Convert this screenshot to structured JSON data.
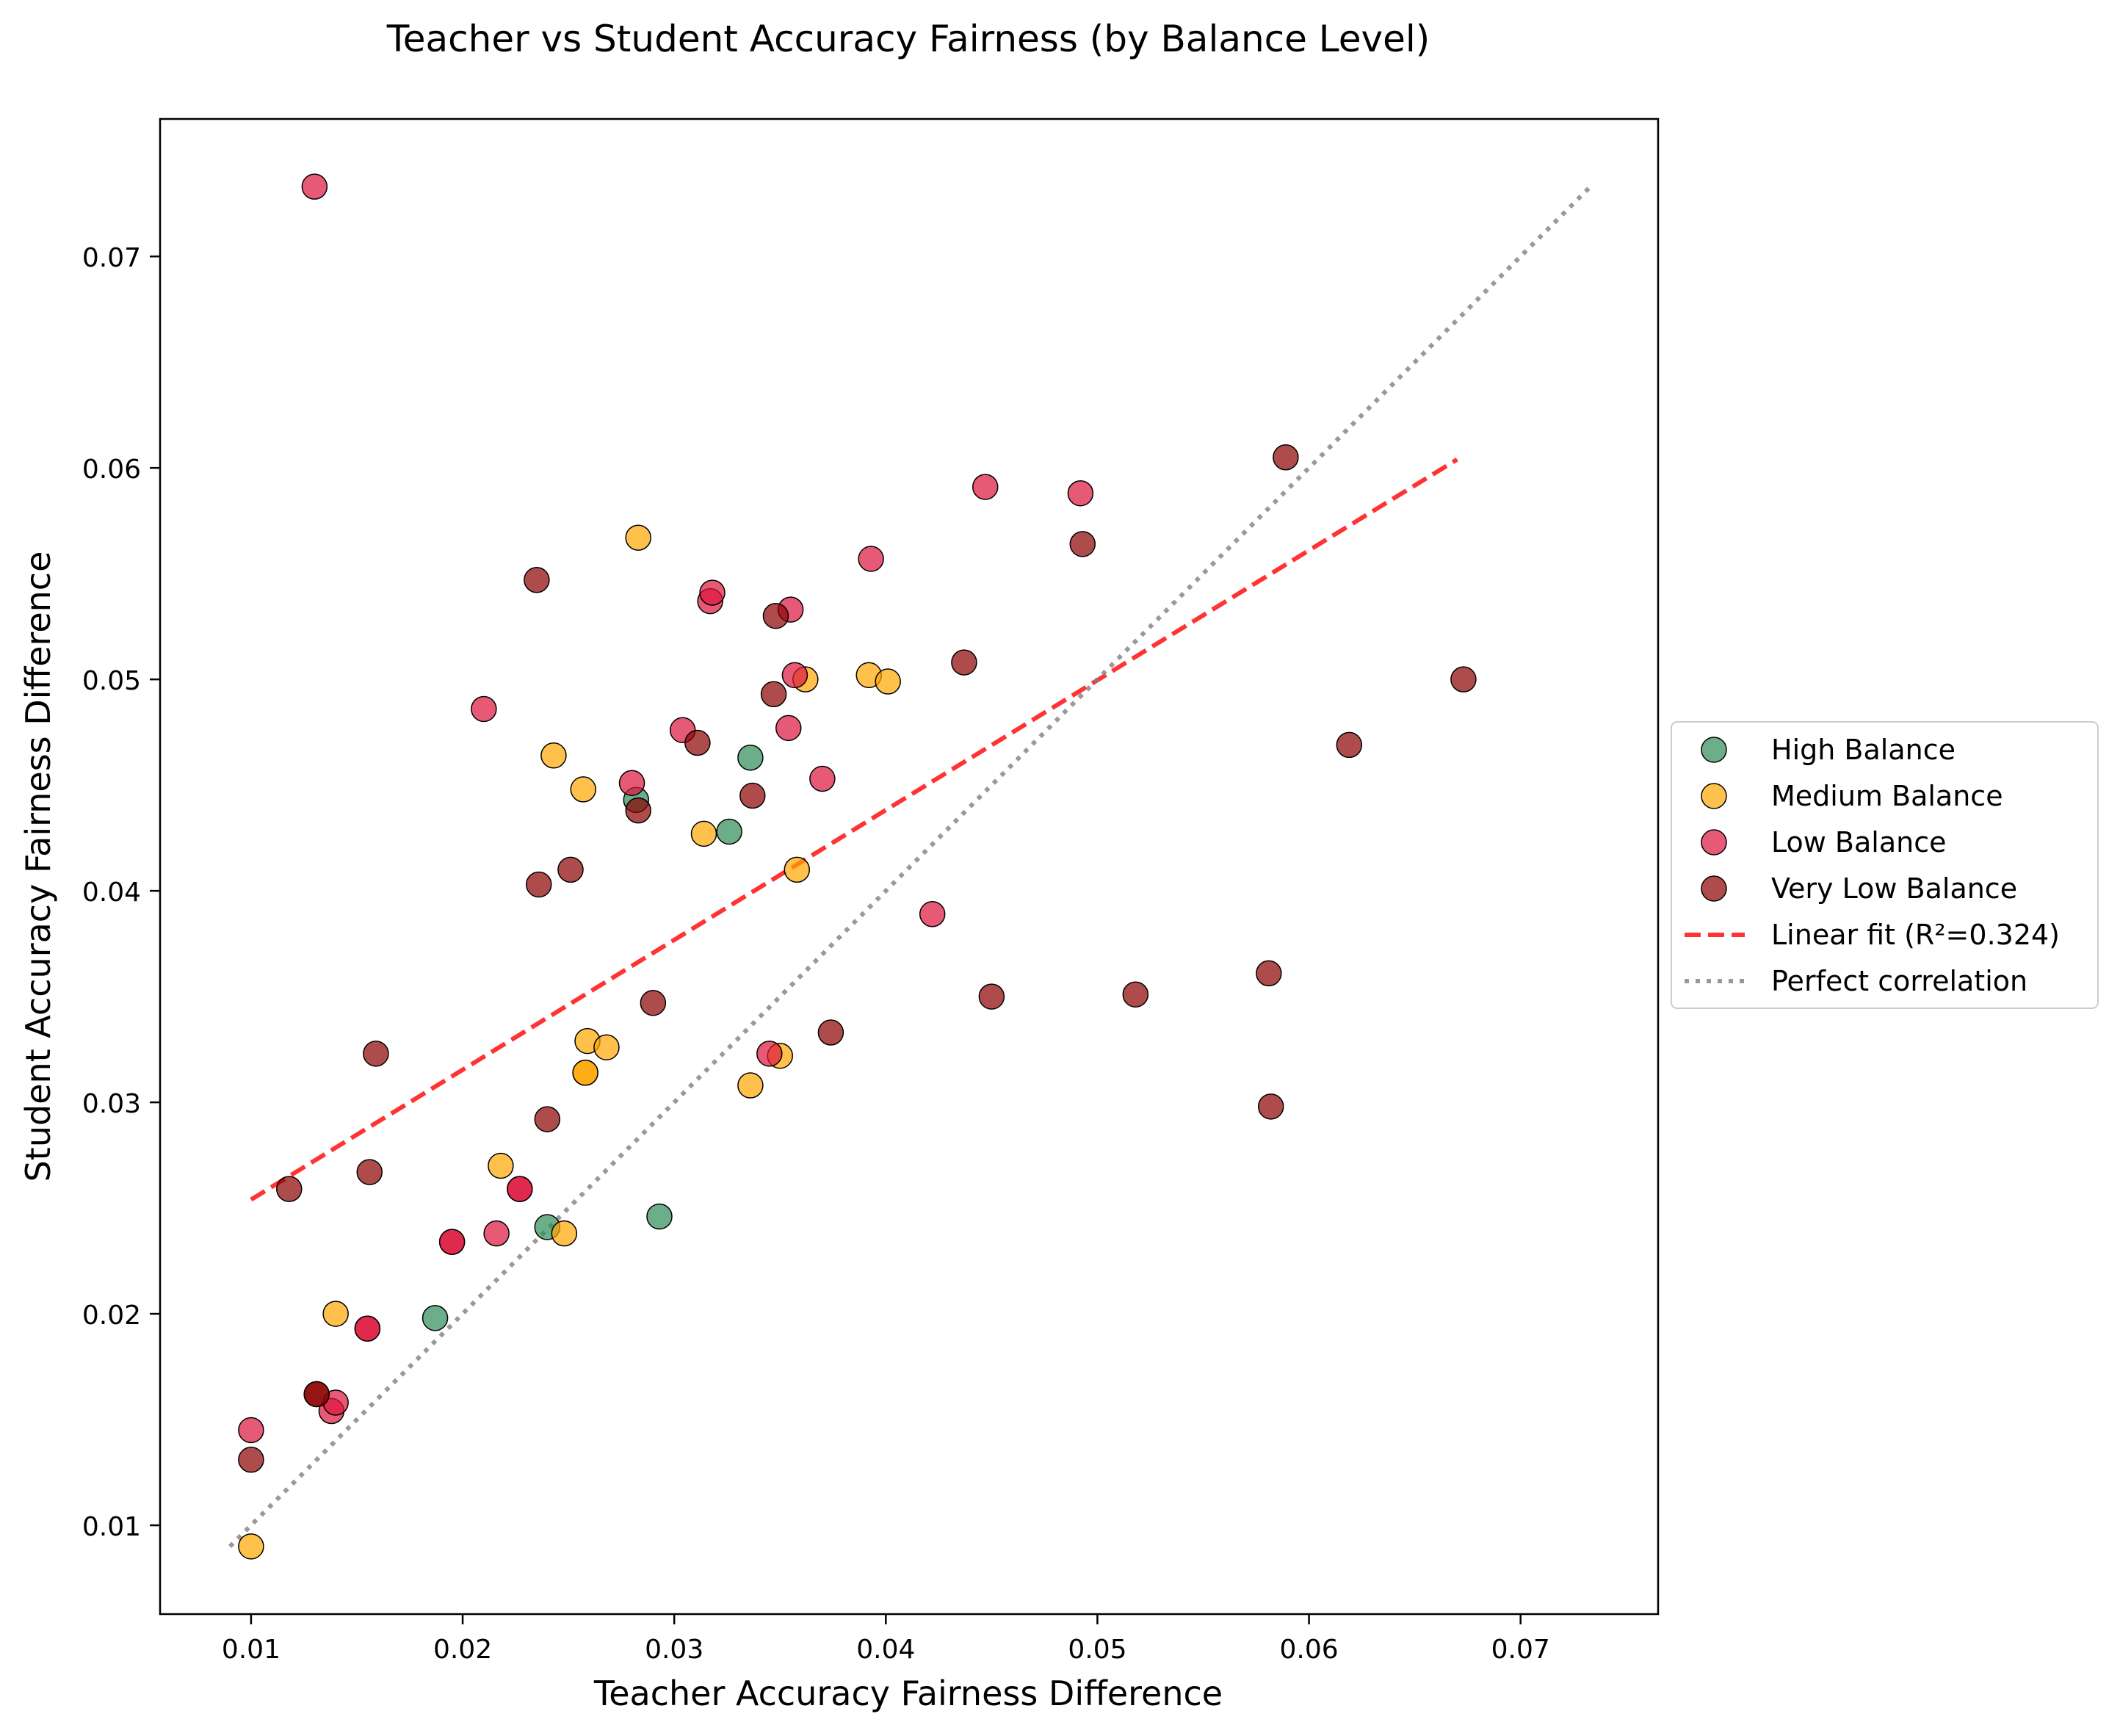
{
  "chart_data": {
    "type": "scatter",
    "title": "Teacher vs Student Accuracy Fairness (by Balance Level)",
    "xlabel": "Teacher Accuracy Fairness Difference",
    "ylabel": "Student Accuracy Fairness Difference",
    "xlim": [
      0.0057,
      0.0765
    ],
    "ylim": [
      0.0058,
      0.0765
    ],
    "xticks": [
      0.01,
      0.02,
      0.03,
      0.04,
      0.05,
      0.06,
      0.07
    ],
    "xtick_labels": [
      "0.01",
      "0.02",
      "0.03",
      "0.04",
      "0.05",
      "0.06",
      "0.07"
    ],
    "yticks": [
      0.01,
      0.02,
      0.03,
      0.04,
      0.05,
      0.06,
      0.07
    ],
    "ytick_labels": [
      "0.01",
      "0.02",
      "0.03",
      "0.04",
      "0.05",
      "0.06",
      "0.07"
    ],
    "grid": false,
    "legend_position": "center-right, outside plot",
    "series": [
      {
        "name": "High Balance",
        "color": "#2e8b57",
        "points": [
          {
            "x": 0.0187,
            "y": 0.0198
          },
          {
            "x": 0.024,
            "y": 0.0241
          },
          {
            "x": 0.0282,
            "y": 0.0443
          },
          {
            "x": 0.0293,
            "y": 0.0246
          },
          {
            "x": 0.0326,
            "y": 0.0428
          },
          {
            "x": 0.0336,
            "y": 0.0463
          }
        ]
      },
      {
        "name": "Medium Balance",
        "color": "#ffa500",
        "points": [
          {
            "x": 0.01,
            "y": 0.009
          },
          {
            "x": 0.014,
            "y": 0.02
          },
          {
            "x": 0.0218,
            "y": 0.027
          },
          {
            "x": 0.0243,
            "y": 0.0464
          },
          {
            "x": 0.0248,
            "y": 0.0238
          },
          {
            "x": 0.0257,
            "y": 0.0448
          },
          {
            "x": 0.0258,
            "y": 0.0314
          },
          {
            "x": 0.0258,
            "y": 0.0314
          },
          {
            "x": 0.0259,
            "y": 0.0329
          },
          {
            "x": 0.0268,
            "y": 0.0326
          },
          {
            "x": 0.0283,
            "y": 0.0567
          },
          {
            "x": 0.0314,
            "y": 0.0427
          },
          {
            "x": 0.0336,
            "y": 0.0308
          },
          {
            "x": 0.035,
            "y": 0.0322
          },
          {
            "x": 0.0358,
            "y": 0.041
          },
          {
            "x": 0.0362,
            "y": 0.05
          },
          {
            "x": 0.0392,
            "y": 0.0502
          },
          {
            "x": 0.0401,
            "y": 0.0499
          }
        ]
      },
      {
        "name": "Low Balance",
        "color": "#dc143c",
        "points": [
          {
            "x": 0.013,
            "y": 0.0733
          },
          {
            "x": 0.01,
            "y": 0.0145
          },
          {
            "x": 0.0138,
            "y": 0.0154
          },
          {
            "x": 0.014,
            "y": 0.0158
          },
          {
            "x": 0.0155,
            "y": 0.0193
          },
          {
            "x": 0.0155,
            "y": 0.0193
          },
          {
            "x": 0.0195,
            "y": 0.0234
          },
          {
            "x": 0.0195,
            "y": 0.0234
          },
          {
            "x": 0.021,
            "y": 0.0486
          },
          {
            "x": 0.0216,
            "y": 0.0238
          },
          {
            "x": 0.0227,
            "y": 0.0259
          },
          {
            "x": 0.0227,
            "y": 0.0259
          },
          {
            "x": 0.028,
            "y": 0.0451
          },
          {
            "x": 0.0304,
            "y": 0.0476
          },
          {
            "x": 0.0317,
            "y": 0.0537
          },
          {
            "x": 0.0318,
            "y": 0.0541
          },
          {
            "x": 0.0345,
            "y": 0.0323
          },
          {
            "x": 0.0354,
            "y": 0.0477
          },
          {
            "x": 0.0355,
            "y": 0.0533
          },
          {
            "x": 0.0357,
            "y": 0.0502
          },
          {
            "x": 0.037,
            "y": 0.0453
          },
          {
            "x": 0.0393,
            "y": 0.0557
          },
          {
            "x": 0.0422,
            "y": 0.0389
          },
          {
            "x": 0.0447,
            "y": 0.0591
          },
          {
            "x": 0.0492,
            "y": 0.0588
          }
        ]
      },
      {
        "name": "Very Low Balance",
        "color": "#8b0000",
        "points": [
          {
            "x": 0.01,
            "y": 0.0131
          },
          {
            "x": 0.0118,
            "y": 0.0259
          },
          {
            "x": 0.0131,
            "y": 0.0162
          },
          {
            "x": 0.0131,
            "y": 0.0162
          },
          {
            "x": 0.0156,
            "y": 0.0267
          },
          {
            "x": 0.0159,
            "y": 0.0323
          },
          {
            "x": 0.0235,
            "y": 0.0547
          },
          {
            "x": 0.0236,
            "y": 0.0403
          },
          {
            "x": 0.024,
            "y": 0.0292
          },
          {
            "x": 0.0251,
            "y": 0.041
          },
          {
            "x": 0.0283,
            "y": 0.0438
          },
          {
            "x": 0.029,
            "y": 0.0347
          },
          {
            "x": 0.0311,
            "y": 0.047
          },
          {
            "x": 0.0337,
            "y": 0.0445
          },
          {
            "x": 0.0347,
            "y": 0.0493
          },
          {
            "x": 0.0348,
            "y": 0.053
          },
          {
            "x": 0.0374,
            "y": 0.0333
          },
          {
            "x": 0.0437,
            "y": 0.0508
          },
          {
            "x": 0.045,
            "y": 0.035
          },
          {
            "x": 0.0493,
            "y": 0.0564
          },
          {
            "x": 0.0518,
            "y": 0.0351
          },
          {
            "x": 0.0581,
            "y": 0.0361
          },
          {
            "x": 0.0582,
            "y": 0.0298
          },
          {
            "x": 0.0589,
            "y": 0.0605
          },
          {
            "x": 0.0619,
            "y": 0.0469
          },
          {
            "x": 0.0673,
            "y": 0.05
          }
        ]
      }
    ],
    "lines": [
      {
        "name": "Linear fit (R²=0.324)",
        "color": "#ff0000",
        "style": "dashed",
        "x": [
          0.01,
          0.067
        ],
        "y": [
          0.0254,
          0.0604
        ]
      },
      {
        "name": "Perfect correlation",
        "color": "#808080",
        "style": "dotted",
        "x": [
          0.009,
          0.0733
        ],
        "y": [
          0.009,
          0.0733
        ]
      }
    ]
  }
}
